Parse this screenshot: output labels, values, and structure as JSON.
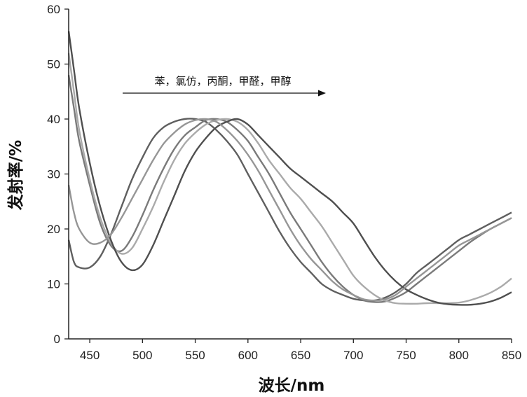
{
  "chart_data": {
    "type": "line",
    "xlabel": "波长/nm",
    "ylabel": "发射率/%",
    "xlim": [
      430,
      850
    ],
    "ylim": [
      0,
      60
    ],
    "x_ticks": [
      450,
      500,
      550,
      600,
      650,
      700,
      750,
      800,
      850
    ],
    "y_ticks": [
      0,
      10,
      20,
      30,
      40,
      50,
      60
    ],
    "grid": false,
    "annotation": "苯，氯仿，丙酮，甲醛，甲醇",
    "annotation_arrow": "right",
    "series": [
      {
        "color": "#5f5f5f",
        "points": [
          [
            430,
            18
          ],
          [
            435,
            14
          ],
          [
            440,
            13
          ],
          [
            450,
            13
          ],
          [
            460,
            15
          ],
          [
            470,
            19
          ],
          [
            480,
            24
          ],
          [
            490,
            29
          ],
          [
            500,
            33
          ],
          [
            510,
            36.5
          ],
          [
            520,
            38.5
          ],
          [
            530,
            39.5
          ],
          [
            540,
            40
          ],
          [
            550,
            40
          ],
          [
            560,
            39.5
          ],
          [
            570,
            38
          ],
          [
            580,
            36
          ],
          [
            590,
            33.5
          ],
          [
            600,
            30
          ],
          [
            610,
            26.5
          ],
          [
            620,
            23
          ],
          [
            630,
            19.5
          ],
          [
            640,
            16.5
          ],
          [
            650,
            14
          ],
          [
            660,
            12
          ],
          [
            670,
            10
          ],
          [
            680,
            8.8
          ],
          [
            690,
            8
          ],
          [
            700,
            7.3
          ],
          [
            710,
            7
          ],
          [
            720,
            7
          ],
          [
            730,
            7.5
          ],
          [
            740,
            8.5
          ],
          [
            750,
            10
          ],
          [
            760,
            12
          ],
          [
            770,
            13.5
          ],
          [
            780,
            15
          ],
          [
            790,
            16.5
          ],
          [
            800,
            18
          ],
          [
            810,
            19
          ],
          [
            820,
            20
          ],
          [
            830,
            21
          ],
          [
            840,
            22
          ],
          [
            850,
            23
          ]
        ]
      },
      {
        "color": "#7a7a7a",
        "points": [
          [
            430,
            48
          ],
          [
            435,
            42
          ],
          [
            440,
            36
          ],
          [
            450,
            28
          ],
          [
            460,
            21
          ],
          [
            470,
            17
          ],
          [
            480,
            16
          ],
          [
            490,
            18.5
          ],
          [
            500,
            22.5
          ],
          [
            510,
            27
          ],
          [
            520,
            31
          ],
          [
            530,
            34.5
          ],
          [
            540,
            37
          ],
          [
            550,
            38.5
          ],
          [
            560,
            39.8
          ],
          [
            570,
            40
          ],
          [
            580,
            39.5
          ],
          [
            590,
            38
          ],
          [
            600,
            36
          ],
          [
            610,
            33
          ],
          [
            620,
            30
          ],
          [
            630,
            26.5
          ],
          [
            640,
            23
          ],
          [
            650,
            20
          ],
          [
            660,
            17
          ],
          [
            670,
            14
          ],
          [
            680,
            11.5
          ],
          [
            690,
            9.5
          ],
          [
            700,
            8
          ],
          [
            710,
            7
          ],
          [
            720,
            6.7
          ],
          [
            730,
            6.8
          ],
          [
            740,
            7.5
          ],
          [
            750,
            8.5
          ],
          [
            760,
            10
          ],
          [
            770,
            11.5
          ],
          [
            780,
            13
          ],
          [
            790,
            14.5
          ],
          [
            800,
            16
          ],
          [
            810,
            17.5
          ],
          [
            820,
            18.8
          ],
          [
            830,
            20
          ],
          [
            840,
            21
          ],
          [
            850,
            22
          ]
        ]
      },
      {
        "color": "#aaaaaa",
        "points": [
          [
            430,
            52
          ],
          [
            435,
            45
          ],
          [
            440,
            38
          ],
          [
            450,
            29
          ],
          [
            460,
            22
          ],
          [
            470,
            17.5
          ],
          [
            480,
            15.5
          ],
          [
            490,
            16.5
          ],
          [
            500,
            20
          ],
          [
            510,
            24
          ],
          [
            520,
            28.5
          ],
          [
            530,
            32.5
          ],
          [
            540,
            35.5
          ],
          [
            550,
            37.5
          ],
          [
            560,
            39
          ],
          [
            570,
            39.8
          ],
          [
            580,
            40
          ],
          [
            590,
            39.5
          ],
          [
            600,
            38
          ],
          [
            610,
            35.5
          ],
          [
            620,
            32.5
          ],
          [
            630,
            30
          ],
          [
            640,
            27.5
          ],
          [
            650,
            25.5
          ],
          [
            660,
            23
          ],
          [
            670,
            20.5
          ],
          [
            680,
            17.5
          ],
          [
            690,
            14.5
          ],
          [
            700,
            11.5
          ],
          [
            710,
            9.5
          ],
          [
            720,
            8
          ],
          [
            730,
            7
          ],
          [
            740,
            6.5
          ],
          [
            750,
            6.4
          ],
          [
            760,
            6.4
          ],
          [
            770,
            6.5
          ],
          [
            780,
            6.5
          ],
          [
            790,
            6.5
          ],
          [
            800,
            6.6
          ],
          [
            810,
            7
          ],
          [
            820,
            7.6
          ],
          [
            830,
            8.4
          ],
          [
            840,
            9.5
          ],
          [
            850,
            11
          ]
        ]
      },
      {
        "color": "#4f4f4f",
        "points": [
          [
            430,
            56
          ],
          [
            435,
            49
          ],
          [
            440,
            42
          ],
          [
            450,
            32
          ],
          [
            460,
            24
          ],
          [
            470,
            18
          ],
          [
            480,
            14
          ],
          [
            490,
            12.5
          ],
          [
            500,
            13.5
          ],
          [
            510,
            17
          ],
          [
            520,
            21.5
          ],
          [
            530,
            26
          ],
          [
            540,
            30.5
          ],
          [
            550,
            34
          ],
          [
            560,
            36.5
          ],
          [
            570,
            38.5
          ],
          [
            580,
            39.5
          ],
          [
            590,
            40
          ],
          [
            600,
            39
          ],
          [
            610,
            37
          ],
          [
            620,
            35
          ],
          [
            630,
            33
          ],
          [
            640,
            31
          ],
          [
            650,
            29.5
          ],
          [
            660,
            28
          ],
          [
            670,
            26.5
          ],
          [
            680,
            25
          ],
          [
            690,
            23
          ],
          [
            700,
            21
          ],
          [
            710,
            18
          ],
          [
            720,
            15
          ],
          [
            730,
            12.5
          ],
          [
            740,
            10.5
          ],
          [
            750,
            9
          ],
          [
            760,
            8
          ],
          [
            770,
            7.2
          ],
          [
            780,
            6.6
          ],
          [
            790,
            6.3
          ],
          [
            800,
            6.2
          ],
          [
            810,
            6.2
          ],
          [
            820,
            6.4
          ],
          [
            830,
            6.8
          ],
          [
            840,
            7.5
          ],
          [
            850,
            8.5
          ]
        ]
      },
      {
        "color": "#969696",
        "points": [
          [
            430,
            28
          ],
          [
            435,
            23
          ],
          [
            440,
            20
          ],
          [
            450,
            17.5
          ],
          [
            460,
            17.5
          ],
          [
            470,
            19
          ],
          [
            480,
            22
          ],
          [
            490,
            25.5
          ],
          [
            500,
            29
          ],
          [
            510,
            32.5
          ],
          [
            520,
            35.5
          ],
          [
            530,
            37.5
          ],
          [
            540,
            39
          ],
          [
            550,
            39.8
          ],
          [
            560,
            40
          ],
          [
            570,
            39.5
          ],
          [
            580,
            38
          ],
          [
            590,
            36
          ],
          [
            600,
            33.5
          ],
          [
            610,
            30.5
          ],
          [
            620,
            27
          ],
          [
            630,
            23.5
          ],
          [
            640,
            20
          ],
          [
            650,
            17
          ],
          [
            660,
            14.5
          ],
          [
            670,
            12.5
          ],
          [
            680,
            10.5
          ],
          [
            690,
            9
          ],
          [
            700,
            8
          ],
          [
            710,
            7.2
          ],
          [
            720,
            7
          ],
          [
            730,
            7.2
          ],
          [
            740,
            8
          ],
          [
            750,
            9.5
          ],
          [
            760,
            11
          ],
          [
            770,
            12.5
          ],
          [
            780,
            14
          ],
          [
            790,
            15.5
          ],
          [
            800,
            17
          ],
          [
            810,
            18
          ],
          [
            820,
            19
          ],
          [
            830,
            20
          ],
          [
            840,
            21
          ],
          [
            850,
            22
          ]
        ]
      }
    ]
  }
}
